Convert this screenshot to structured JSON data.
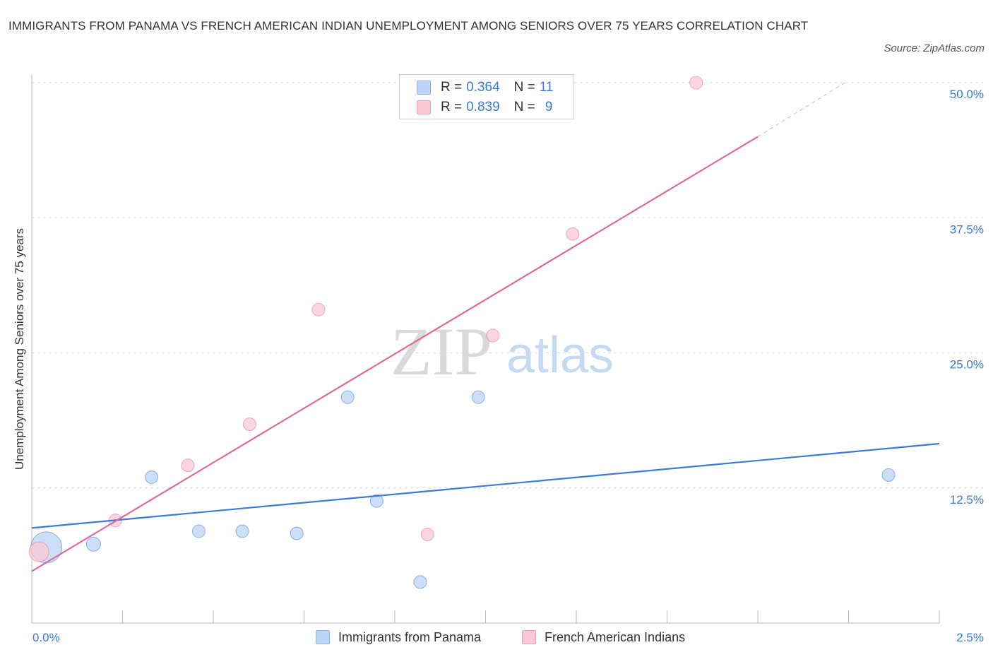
{
  "title": "IMMIGRANTS FROM PANAMA VS FRENCH AMERICAN INDIAN UNEMPLOYMENT AMONG SENIORS OVER 75 YEARS CORRELATION CHART",
  "source": "Source: ZipAtlas.com",
  "watermark": {
    "zip": "ZIP",
    "atlas": "atlas"
  },
  "legend_top": [
    {
      "r_label": "R =",
      "r_value": "0.364",
      "n_label": "N =",
      "n_value": "11",
      "color": "#bcd4f6"
    },
    {
      "r_label": "R =",
      "r_value": "0.839",
      "n_label": "N =",
      "n_value": "9",
      "color": "#f9c8d6"
    }
  ],
  "legend_bottom": [
    {
      "label": "Immigrants from Panama",
      "color": "#bcd4f6"
    },
    {
      "label": "French American Indians",
      "color": "#f9c8d6"
    }
  ],
  "chart_data": {
    "type": "scatter",
    "title": "IMMIGRANTS FROM PANAMA VS FRENCH AMERICAN INDIAN UNEMPLOYMENT AMONG SENIORS OVER 75 YEARS CORRELATION CHART",
    "xlabel": "",
    "ylabel": "Unemployment Among Seniors over 75 years",
    "xlim": [
      0,
      2.5
    ],
    "ylim": [
      0,
      50
    ],
    "x_tick_labels": [
      "0.0%",
      "2.5%"
    ],
    "y_ticks": [
      12.5,
      25.0,
      37.5,
      50.0
    ],
    "y_tick_labels": [
      "12.5%",
      "25.0%",
      "37.5%",
      "50.0%"
    ],
    "grid": true,
    "series": [
      {
        "name": "Immigrants from Panama",
        "color": "#3a7bd5",
        "fill": "#bcd4f6",
        "points": [
          {
            "x": 0.04,
            "y": 7.0,
            "size": 22
          },
          {
            "x": 0.17,
            "y": 7.3,
            "size": 10
          },
          {
            "x": 0.33,
            "y": 13.5,
            "size": 9
          },
          {
            "x": 0.46,
            "y": 8.5,
            "size": 9
          },
          {
            "x": 0.58,
            "y": 8.5,
            "size": 9
          },
          {
            "x": 0.73,
            "y": 8.3,
            "size": 9
          },
          {
            "x": 0.87,
            "y": 20.9,
            "size": 9
          },
          {
            "x": 0.95,
            "y": 11.3,
            "size": 9
          },
          {
            "x": 1.07,
            "y": 3.8,
            "size": 9
          },
          {
            "x": 1.23,
            "y": 20.9,
            "size": 9
          },
          {
            "x": 2.36,
            "y": 13.7,
            "size": 9
          }
        ],
        "trend": {
          "x": [
            0.0,
            2.5
          ],
          "y": [
            8.8,
            16.6
          ]
        }
      },
      {
        "name": "French American Indians",
        "color": "#e06b93",
        "fill": "#f9c8d6",
        "points": [
          {
            "x": 0.02,
            "y": 6.6,
            "size": 14
          },
          {
            "x": 0.23,
            "y": 9.5,
            "size": 9
          },
          {
            "x": 0.43,
            "y": 14.6,
            "size": 9
          },
          {
            "x": 0.6,
            "y": 18.4,
            "size": 9
          },
          {
            "x": 0.79,
            "y": 29.0,
            "size": 9
          },
          {
            "x": 1.09,
            "y": 8.2,
            "size": 9
          },
          {
            "x": 1.27,
            "y": 26.6,
            "size": 9
          },
          {
            "x": 1.49,
            "y": 36.0,
            "size": 9
          },
          {
            "x": 1.83,
            "y": 50.0,
            "size": 9
          }
        ],
        "trend": {
          "x": [
            0.0,
            2.0
          ],
          "y": [
            4.8,
            45.0
          ],
          "dashed_to": {
            "x": 2.24,
            "y": 50.0
          }
        }
      }
    ]
  }
}
